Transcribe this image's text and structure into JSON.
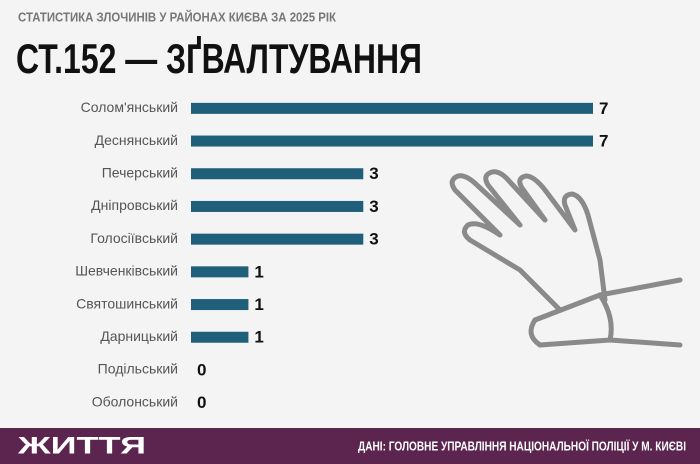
{
  "chart_data": {
    "type": "bar",
    "orientation": "horizontal",
    "subtitle": "СТАТИСТИКА ЗЛОЧИНІВ У РАЙОНАХ КИЄВА ЗА 2025 РІК",
    "title": "СТ.152 — ЗҐВАЛТУВАННЯ",
    "categories": [
      "Солом'янський",
      "Деснянський",
      "Печерський",
      "Дніпровський",
      "Голосіївський",
      "Шевченківський",
      "Святошинський",
      "Дарницький",
      "Подільський",
      "Оболонський"
    ],
    "values": [
      7,
      7,
      3,
      3,
      3,
      1,
      1,
      1,
      0,
      0
    ],
    "color": "#1f5f7a",
    "xlim": [
      0,
      7
    ],
    "brand": "ЖИТТЯ",
    "source": "ДАНІ: ГОЛОВНЕ УПРАВЛІННЯ НАЦІОНАЛЬНОЇ ПОЛІЦІЇ У М. КИЄВІ"
  }
}
